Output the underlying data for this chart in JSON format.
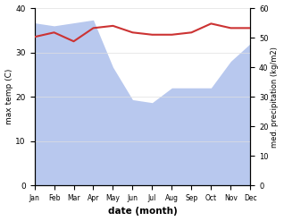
{
  "months": [
    "Jan",
    "Feb",
    "Mar",
    "Apr",
    "May",
    "Jun",
    "Jul",
    "Aug",
    "Sep",
    "Oct",
    "Nov",
    "Dec"
  ],
  "month_indices": [
    1,
    2,
    3,
    4,
    5,
    6,
    7,
    8,
    9,
    10,
    11,
    12
  ],
  "temperature": [
    33.5,
    34.5,
    32.5,
    35.5,
    36.0,
    34.5,
    34.0,
    34.0,
    34.5,
    36.5,
    35.5,
    35.5
  ],
  "precipitation": [
    55,
    54,
    55,
    56,
    40,
    29,
    28,
    33,
    33,
    33,
    42,
    48
  ],
  "temp_color": "#cc3333",
  "precip_color": "#b8c8ee",
  "background_color": "#ffffff",
  "ylabel_left": "max temp (C)",
  "ylabel_right": "med. precipitation (kg/m2)",
  "xlabel": "date (month)",
  "ylim_left": [
    0,
    40
  ],
  "ylim_right": [
    0,
    60
  ],
  "temp_linewidth": 1.5,
  "fig_width": 3.18,
  "fig_height": 2.47,
  "dpi": 100
}
